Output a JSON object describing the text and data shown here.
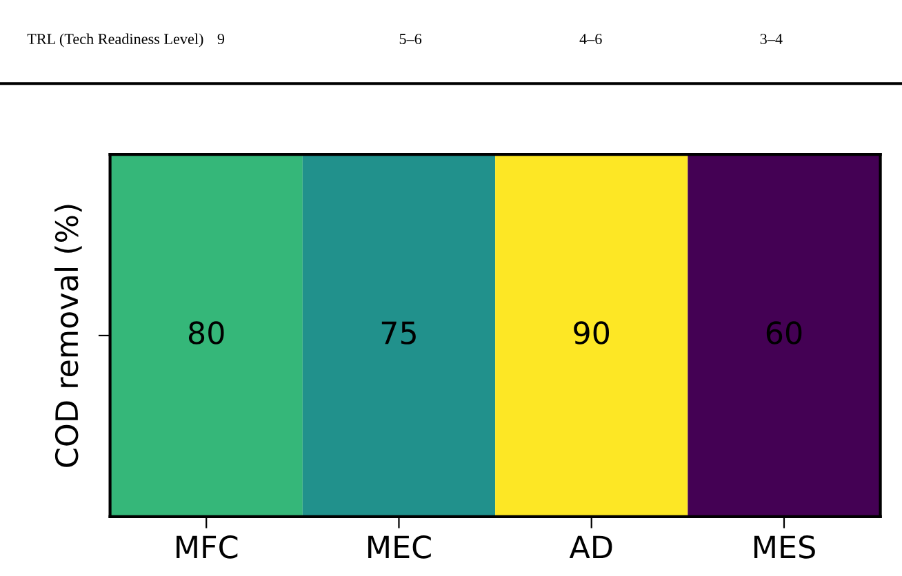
{
  "chart_data": {
    "type": "heatmap",
    "ylabel": "COD removal (%)",
    "categories": [
      "MFC",
      "MEC",
      "AD",
      "MES"
    ],
    "y_categories": [
      null
    ],
    "cells": [
      [
        80,
        75,
        90,
        60
      ]
    ],
    "data_labels": true,
    "annotations": [
      "TRL (Tech Readiness Level)",
      "9",
      "5–6",
      "4–6",
      "3–4"
    ]
  }
}
